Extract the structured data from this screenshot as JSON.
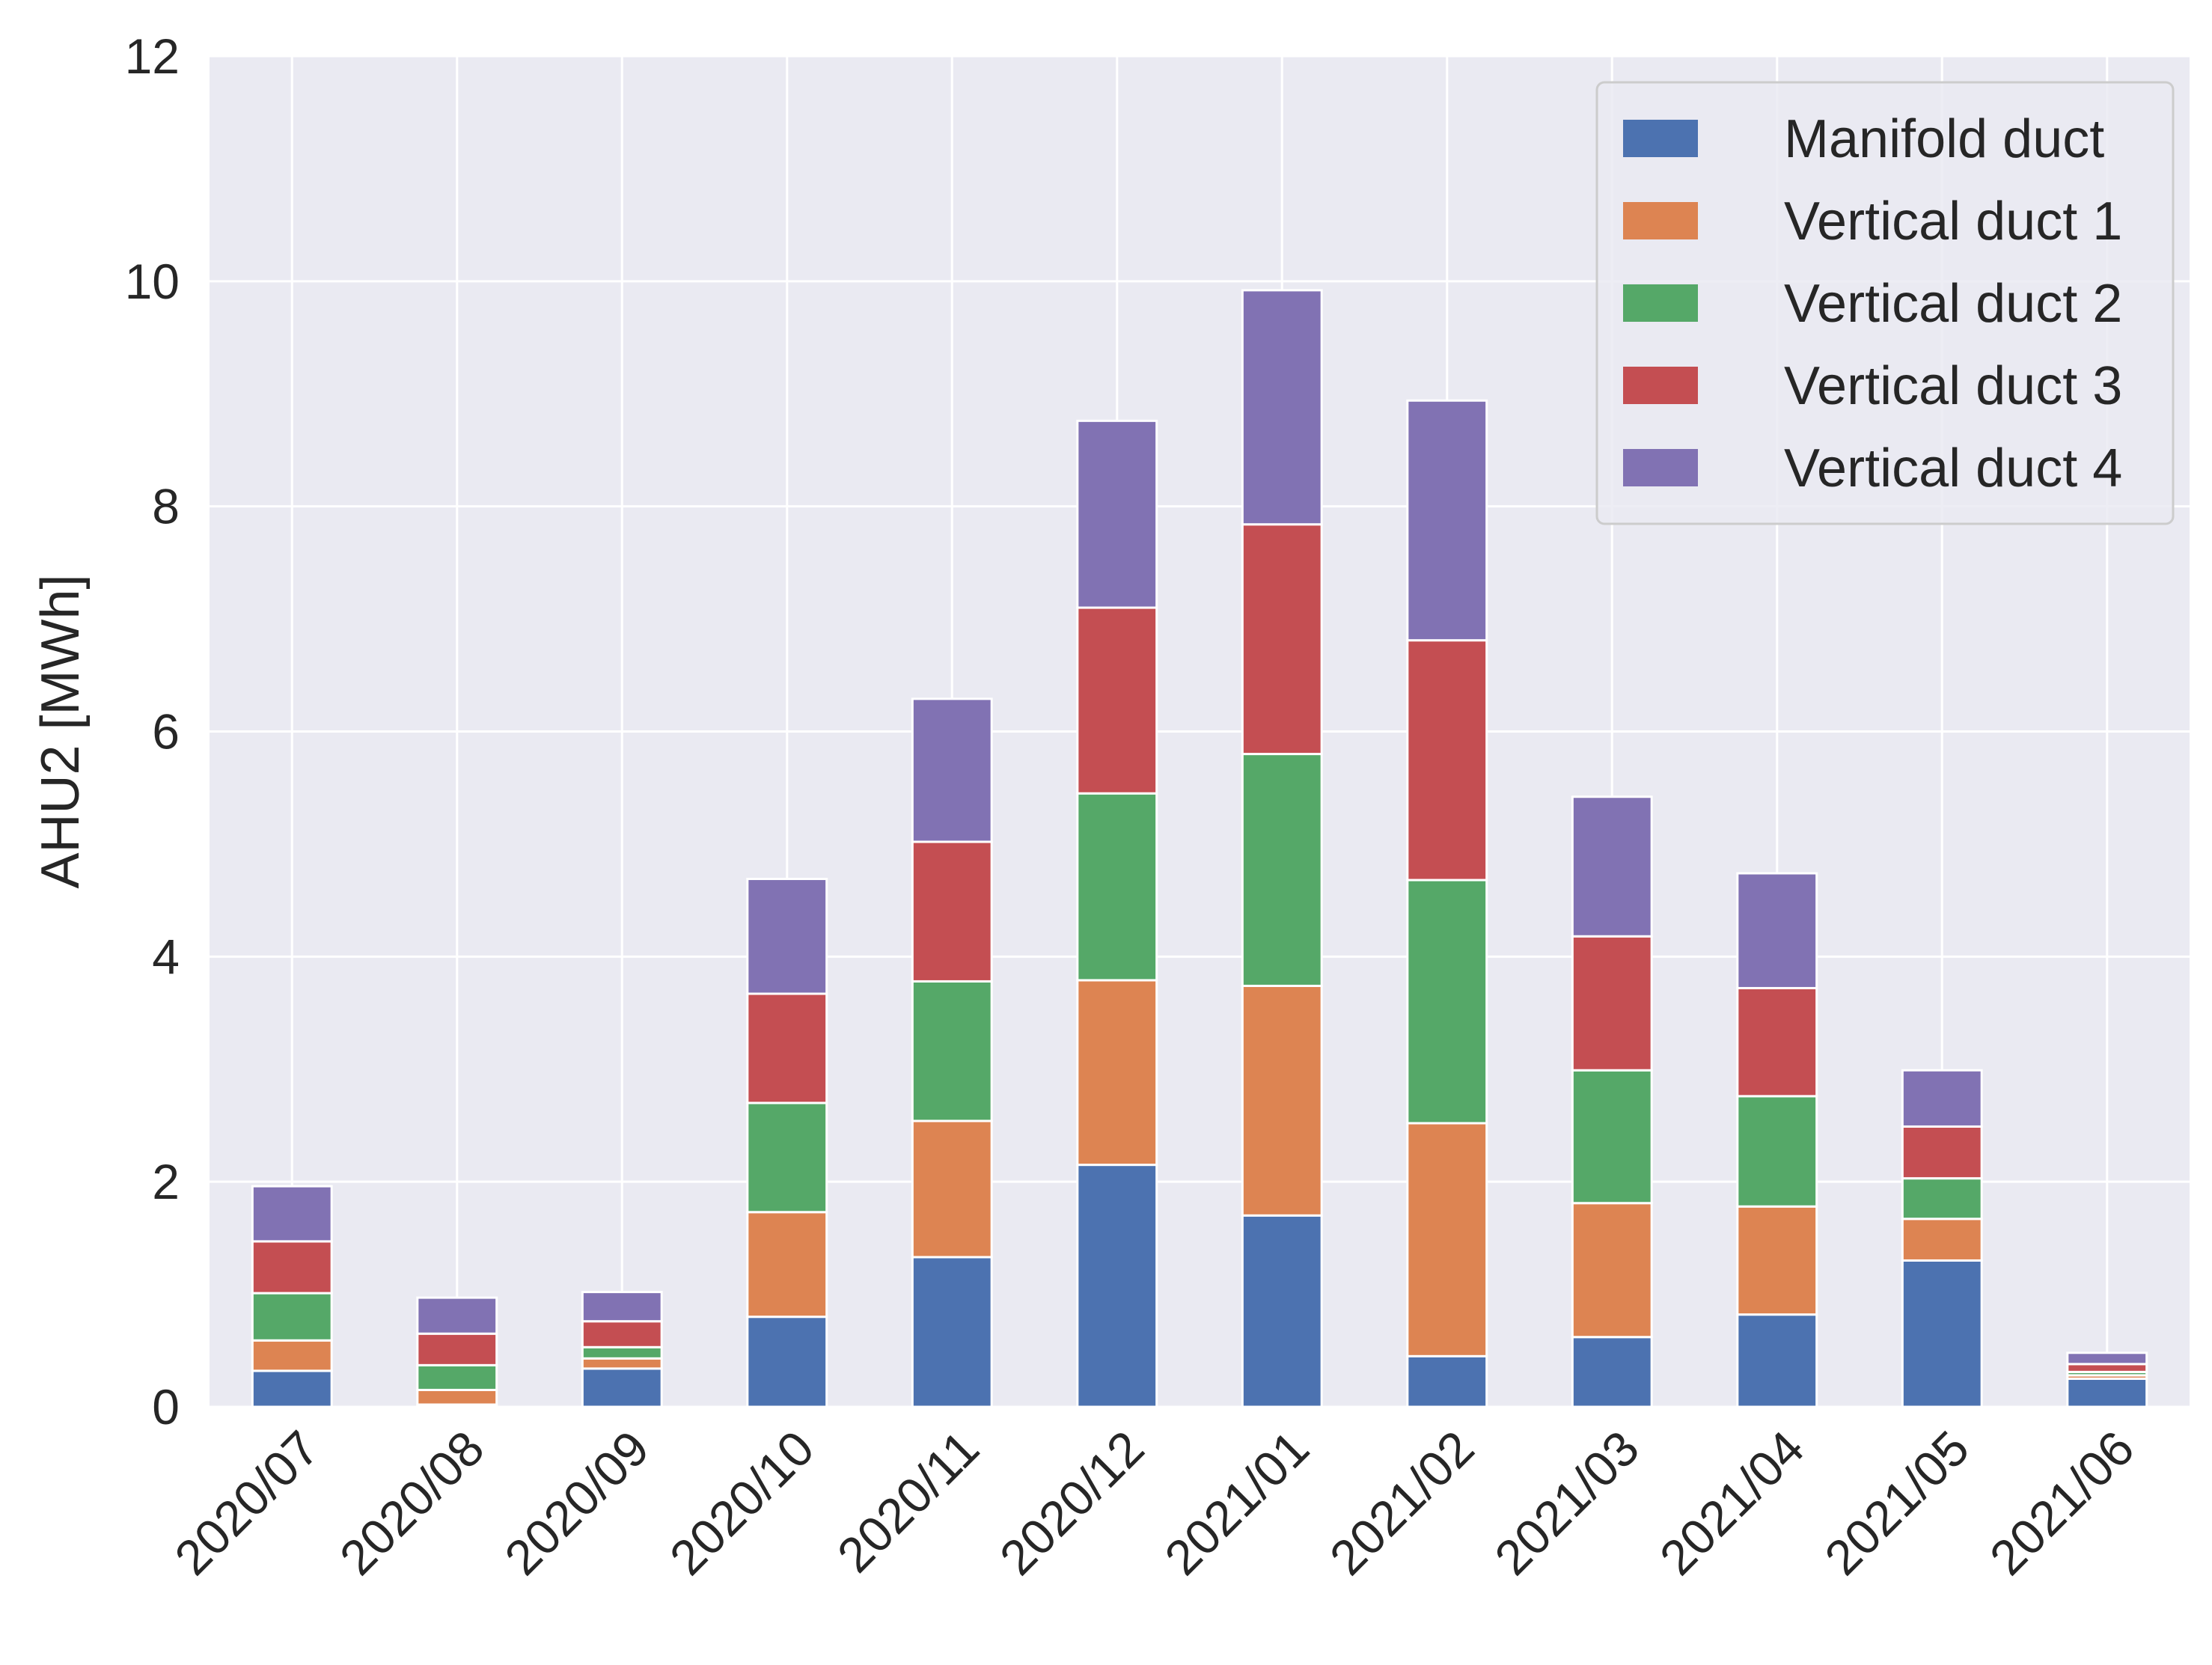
{
  "chart_data": {
    "type": "bar",
    "stacked": true,
    "title": "",
    "xlabel": "",
    "ylabel": "AHU2 [MWh]",
    "ylim": [
      0,
      12
    ],
    "yticks": [
      0,
      2,
      4,
      6,
      8,
      10,
      12
    ],
    "grid": true,
    "legend_position": "top-right",
    "categories": [
      "2020/07",
      "2020/08",
      "2020/09",
      "2020/10",
      "2020/11",
      "2020/12",
      "2021/01",
      "2021/02",
      "2021/03",
      "2021/04",
      "2021/05",
      "2021/06"
    ],
    "series": [
      {
        "name": "Manifold duct",
        "color": "#4c72b0",
        "values": [
          0.32,
          0.02,
          0.34,
          0.8,
          1.33,
          2.15,
          1.7,
          0.45,
          0.62,
          0.82,
          1.3,
          0.25
        ]
      },
      {
        "name": "Vertical duct 1",
        "color": "#dd8452",
        "values": [
          0.27,
          0.13,
          0.09,
          0.93,
          1.21,
          1.64,
          2.04,
          2.07,
          1.19,
          0.96,
          0.37,
          0.03
        ]
      },
      {
        "name": "Vertical duct 2",
        "color": "#55a868",
        "values": [
          0.42,
          0.22,
          0.1,
          0.97,
          1.24,
          1.66,
          2.06,
          2.16,
          1.18,
          0.98,
          0.36,
          0.03
        ]
      },
      {
        "name": "Vertical duct 3",
        "color": "#c44e52",
        "values": [
          0.46,
          0.28,
          0.23,
          0.97,
          1.24,
          1.65,
          2.04,
          2.13,
          1.19,
          0.96,
          0.46,
          0.07
        ]
      },
      {
        "name": "Vertical duct 4",
        "color": "#8172b3",
        "values": [
          0.49,
          0.32,
          0.26,
          1.02,
          1.27,
          1.66,
          2.08,
          2.13,
          1.24,
          1.02,
          0.5,
          0.1
        ]
      }
    ]
  }
}
